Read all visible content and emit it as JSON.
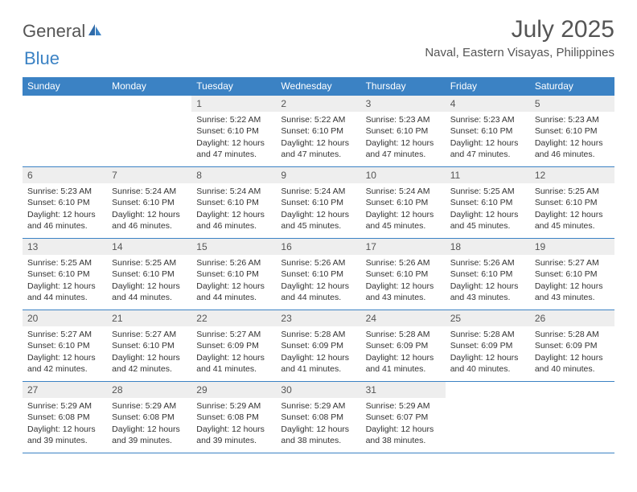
{
  "brand": {
    "word1": "General",
    "word2": "Blue",
    "color1": "#555555",
    "color2": "#3b82c4"
  },
  "title": "July 2025",
  "location": "Naval, Eastern Visayas, Philippines",
  "weekdays": [
    "Sunday",
    "Monday",
    "Tuesday",
    "Wednesday",
    "Thursday",
    "Friday",
    "Saturday"
  ],
  "style": {
    "header_bg": "#3b82c4",
    "header_fg": "#ffffff",
    "daynum_bg": "#eeeeee",
    "row_border": "#3b82c4",
    "text_color": "#333333",
    "title_fontsize": 30,
    "location_fontsize": 15,
    "weekday_fontsize": 12,
    "cell_fontsize": 10.5
  },
  "weeks": [
    [
      null,
      null,
      {
        "n": "1",
        "sr": "Sunrise: 5:22 AM",
        "ss": "Sunset: 6:10 PM",
        "dl": "Daylight: 12 hours and 47 minutes."
      },
      {
        "n": "2",
        "sr": "Sunrise: 5:22 AM",
        "ss": "Sunset: 6:10 PM",
        "dl": "Daylight: 12 hours and 47 minutes."
      },
      {
        "n": "3",
        "sr": "Sunrise: 5:23 AM",
        "ss": "Sunset: 6:10 PM",
        "dl": "Daylight: 12 hours and 47 minutes."
      },
      {
        "n": "4",
        "sr": "Sunrise: 5:23 AM",
        "ss": "Sunset: 6:10 PM",
        "dl": "Daylight: 12 hours and 47 minutes."
      },
      {
        "n": "5",
        "sr": "Sunrise: 5:23 AM",
        "ss": "Sunset: 6:10 PM",
        "dl": "Daylight: 12 hours and 46 minutes."
      }
    ],
    [
      {
        "n": "6",
        "sr": "Sunrise: 5:23 AM",
        "ss": "Sunset: 6:10 PM",
        "dl": "Daylight: 12 hours and 46 minutes."
      },
      {
        "n": "7",
        "sr": "Sunrise: 5:24 AM",
        "ss": "Sunset: 6:10 PM",
        "dl": "Daylight: 12 hours and 46 minutes."
      },
      {
        "n": "8",
        "sr": "Sunrise: 5:24 AM",
        "ss": "Sunset: 6:10 PM",
        "dl": "Daylight: 12 hours and 46 minutes."
      },
      {
        "n": "9",
        "sr": "Sunrise: 5:24 AM",
        "ss": "Sunset: 6:10 PM",
        "dl": "Daylight: 12 hours and 45 minutes."
      },
      {
        "n": "10",
        "sr": "Sunrise: 5:24 AM",
        "ss": "Sunset: 6:10 PM",
        "dl": "Daylight: 12 hours and 45 minutes."
      },
      {
        "n": "11",
        "sr": "Sunrise: 5:25 AM",
        "ss": "Sunset: 6:10 PM",
        "dl": "Daylight: 12 hours and 45 minutes."
      },
      {
        "n": "12",
        "sr": "Sunrise: 5:25 AM",
        "ss": "Sunset: 6:10 PM",
        "dl": "Daylight: 12 hours and 45 minutes."
      }
    ],
    [
      {
        "n": "13",
        "sr": "Sunrise: 5:25 AM",
        "ss": "Sunset: 6:10 PM",
        "dl": "Daylight: 12 hours and 44 minutes."
      },
      {
        "n": "14",
        "sr": "Sunrise: 5:25 AM",
        "ss": "Sunset: 6:10 PM",
        "dl": "Daylight: 12 hours and 44 minutes."
      },
      {
        "n": "15",
        "sr": "Sunrise: 5:26 AM",
        "ss": "Sunset: 6:10 PM",
        "dl": "Daylight: 12 hours and 44 minutes."
      },
      {
        "n": "16",
        "sr": "Sunrise: 5:26 AM",
        "ss": "Sunset: 6:10 PM",
        "dl": "Daylight: 12 hours and 44 minutes."
      },
      {
        "n": "17",
        "sr": "Sunrise: 5:26 AM",
        "ss": "Sunset: 6:10 PM",
        "dl": "Daylight: 12 hours and 43 minutes."
      },
      {
        "n": "18",
        "sr": "Sunrise: 5:26 AM",
        "ss": "Sunset: 6:10 PM",
        "dl": "Daylight: 12 hours and 43 minutes."
      },
      {
        "n": "19",
        "sr": "Sunrise: 5:27 AM",
        "ss": "Sunset: 6:10 PM",
        "dl": "Daylight: 12 hours and 43 minutes."
      }
    ],
    [
      {
        "n": "20",
        "sr": "Sunrise: 5:27 AM",
        "ss": "Sunset: 6:10 PM",
        "dl": "Daylight: 12 hours and 42 minutes."
      },
      {
        "n": "21",
        "sr": "Sunrise: 5:27 AM",
        "ss": "Sunset: 6:10 PM",
        "dl": "Daylight: 12 hours and 42 minutes."
      },
      {
        "n": "22",
        "sr": "Sunrise: 5:27 AM",
        "ss": "Sunset: 6:09 PM",
        "dl": "Daylight: 12 hours and 41 minutes."
      },
      {
        "n": "23",
        "sr": "Sunrise: 5:28 AM",
        "ss": "Sunset: 6:09 PM",
        "dl": "Daylight: 12 hours and 41 minutes."
      },
      {
        "n": "24",
        "sr": "Sunrise: 5:28 AM",
        "ss": "Sunset: 6:09 PM",
        "dl": "Daylight: 12 hours and 41 minutes."
      },
      {
        "n": "25",
        "sr": "Sunrise: 5:28 AM",
        "ss": "Sunset: 6:09 PM",
        "dl": "Daylight: 12 hours and 40 minutes."
      },
      {
        "n": "26",
        "sr": "Sunrise: 5:28 AM",
        "ss": "Sunset: 6:09 PM",
        "dl": "Daylight: 12 hours and 40 minutes."
      }
    ],
    [
      {
        "n": "27",
        "sr": "Sunrise: 5:29 AM",
        "ss": "Sunset: 6:08 PM",
        "dl": "Daylight: 12 hours and 39 minutes."
      },
      {
        "n": "28",
        "sr": "Sunrise: 5:29 AM",
        "ss": "Sunset: 6:08 PM",
        "dl": "Daylight: 12 hours and 39 minutes."
      },
      {
        "n": "29",
        "sr": "Sunrise: 5:29 AM",
        "ss": "Sunset: 6:08 PM",
        "dl": "Daylight: 12 hours and 39 minutes."
      },
      {
        "n": "30",
        "sr": "Sunrise: 5:29 AM",
        "ss": "Sunset: 6:08 PM",
        "dl": "Daylight: 12 hours and 38 minutes."
      },
      {
        "n": "31",
        "sr": "Sunrise: 5:29 AM",
        "ss": "Sunset: 6:07 PM",
        "dl": "Daylight: 12 hours and 38 minutes."
      },
      null,
      null
    ]
  ]
}
